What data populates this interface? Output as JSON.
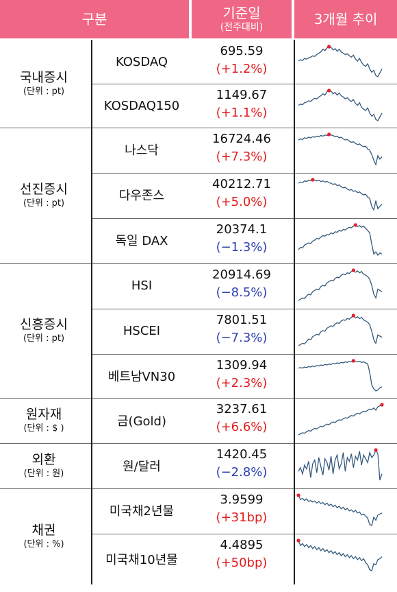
{
  "header": {
    "category": "구분",
    "base_date": "기준일",
    "base_date_sub": "(전주대비)",
    "trend": "3개월 추이"
  },
  "groups": [
    {
      "name": "국내증시",
      "unit": "(단위 : pt)"
    },
    {
      "name": "선진증시",
      "unit": "(단위 : pt)"
    },
    {
      "name": "신흥증시",
      "unit": "(단위 : pt)"
    },
    {
      "name": "원자재",
      "unit": "(단위 : $ )"
    },
    {
      "name": "외환",
      "unit": "(단위 : 원)"
    },
    {
      "name": "채권",
      "unit": "(단위 : %)"
    }
  ],
  "rows": [
    {
      "name": "KOSDAQ",
      "value": "695.59",
      "change": "(+1.2%)",
      "dir": "up",
      "trend": [
        52,
        54,
        53,
        56,
        55,
        57,
        58,
        60,
        59,
        62,
        64,
        66,
        70,
        68,
        72,
        74,
        73,
        69,
        71,
        67,
        70,
        66,
        64,
        62,
        63,
        60,
        58,
        61,
        55,
        52,
        56,
        50,
        46,
        44,
        48,
        40,
        35,
        38,
        30,
        28,
        34,
        40
      ]
    },
    {
      "name": "KOSDAQ150",
      "value": "1149.67",
      "change": "(+1.1%)",
      "dir": "up",
      "trend": [
        50,
        52,
        51,
        54,
        55,
        57,
        56,
        59,
        61,
        60,
        63,
        65,
        68,
        66,
        71,
        73,
        72,
        68,
        70,
        66,
        69,
        65,
        63,
        60,
        62,
        58,
        56,
        59,
        53,
        50,
        54,
        47,
        44,
        42,
        46,
        38,
        33,
        36,
        28,
        26,
        32,
        38
      ]
    },
    {
      "name": "나스닥",
      "value": "16724.46",
      "change": "(+7.3%)",
      "dir": "up",
      "trend": [
        66,
        68,
        67,
        70,
        69,
        71,
        70,
        72,
        71,
        73,
        72,
        74,
        73,
        75,
        74,
        76,
        75,
        74,
        72,
        73,
        70,
        71,
        68,
        66,
        67,
        64,
        62,
        63,
        60,
        58,
        59,
        56,
        54,
        55,
        50,
        48,
        40,
        30,
        22,
        38,
        32,
        36
      ]
    },
    {
      "name": "다우존스",
      "value": "40212.71",
      "change": "(+5.0%)",
      "dir": "up",
      "trend": [
        70,
        72,
        71,
        74,
        73,
        75,
        74,
        76,
        75,
        74,
        75,
        73,
        74,
        72,
        73,
        71,
        70,
        68,
        69,
        66,
        67,
        64,
        62,
        63,
        60,
        58,
        59,
        56,
        57,
        54,
        55,
        52,
        50,
        51,
        46,
        44,
        30,
        24,
        40,
        26,
        30,
        34
      ]
    },
    {
      "name": "독일 DAX",
      "value": "20374.1",
      "change": "(−1.3%)",
      "dir": "down",
      "trend": [
        30,
        34,
        33,
        38,
        40,
        42,
        41,
        45,
        47,
        50,
        49,
        52,
        55,
        54,
        57,
        56,
        60,
        58,
        62,
        61,
        64,
        63,
        66,
        65,
        68,
        70,
        69,
        72,
        74,
        71,
        73,
        70,
        72,
        68,
        64,
        60,
        40,
        22,
        26,
        20,
        24,
        22
      ]
    },
    {
      "name": "HSI",
      "value": "20914.69",
      "change": "(−8.5%)",
      "dir": "down",
      "trend": [
        26,
        28,
        30,
        29,
        33,
        36,
        35,
        40,
        42,
        44,
        43,
        48,
        50,
        49,
        54,
        56,
        58,
        57,
        61,
        63,
        62,
        66,
        68,
        67,
        70,
        69,
        72,
        74,
        71,
        73,
        70,
        72,
        68,
        66,
        64,
        60,
        50,
        36,
        30,
        44,
        42,
        40
      ]
    },
    {
      "name": "HSCEI",
      "value": "7801.51",
      "change": "(−7.3%)",
      "dir": "down",
      "trend": [
        24,
        26,
        28,
        27,
        31,
        35,
        34,
        39,
        41,
        43,
        42,
        47,
        49,
        48,
        53,
        55,
        57,
        56,
        60,
        62,
        61,
        65,
        67,
        66,
        69,
        68,
        71,
        74,
        70,
        72,
        69,
        71,
        67,
        65,
        63,
        59,
        48,
        34,
        28,
        42,
        40,
        38
      ]
    },
    {
      "name": "베트남VN30",
      "value": "1309.94",
      "change": "(+2.3%)",
      "dir": "up",
      "trend": [
        62,
        63,
        62,
        64,
        63,
        65,
        64,
        66,
        65,
        67,
        66,
        68,
        67,
        69,
        68,
        70,
        69,
        71,
        70,
        72,
        71,
        73,
        72,
        74,
        73,
        75,
        74,
        76,
        75,
        74,
        75,
        73,
        74,
        72,
        70,
        54,
        30,
        22,
        18,
        20,
        24,
        26
      ]
    },
    {
      "name": "금(Gold)",
      "value": "3237.61",
      "change": "(+6.6%)",
      "dir": "up",
      "trend": [
        20,
        22,
        24,
        23,
        26,
        28,
        27,
        30,
        32,
        31,
        34,
        36,
        35,
        38,
        40,
        39,
        42,
        44,
        43,
        46,
        48,
        47,
        50,
        52,
        51,
        54,
        56,
        55,
        58,
        60,
        59,
        62,
        64,
        63,
        66,
        68,
        67,
        70,
        66,
        72,
        74,
        76
      ]
    },
    {
      "name": "원/달러",
      "value": "1420.45",
      "change": "(−2.8%)",
      "dir": "down",
      "trend": [
        40,
        46,
        36,
        50,
        44,
        56,
        30,
        52,
        58,
        38,
        62,
        48,
        34,
        60,
        54,
        42,
        64,
        36,
        58,
        66,
        44,
        52,
        70,
        40,
        62,
        56,
        68,
        46,
        64,
        58,
        72,
        50,
        66,
        60,
        54,
        70,
        62,
        66,
        74,
        68,
        26,
        36
      ]
    },
    {
      "name": "미국채2년물",
      "value": "3.9599",
      "change": "(+31bp)",
      "dir": "up",
      "trend": [
        78,
        70,
        72,
        68,
        71,
        66,
        68,
        65,
        67,
        63,
        66,
        62,
        64,
        60,
        63,
        58,
        61,
        56,
        59,
        54,
        57,
        52,
        55,
        50,
        53,
        48,
        50,
        46,
        49,
        44,
        46,
        40,
        42,
        38,
        34,
        22,
        20,
        36,
        30,
        40,
        42,
        44
      ]
    },
    {
      "name": "미국채10년물",
      "value": "4.4895",
      "change": "(+50bp)",
      "dir": "up",
      "trend": [
        78,
        68,
        72,
        66,
        70,
        64,
        68,
        62,
        66,
        60,
        64,
        58,
        62,
        56,
        60,
        54,
        58,
        52,
        56,
        50,
        54,
        48,
        52,
        46,
        50,
        44,
        48,
        42,
        46,
        40,
        44,
        38,
        42,
        34,
        30,
        20,
        18,
        32,
        30,
        40,
        42,
        46
      ]
    }
  ],
  "colors": {
    "header_bg": "#f06786",
    "up": "#e31b1b",
    "down": "#2b3fb3",
    "spark_line": "#33587a",
    "spark_peak": "#e81e2a"
  }
}
